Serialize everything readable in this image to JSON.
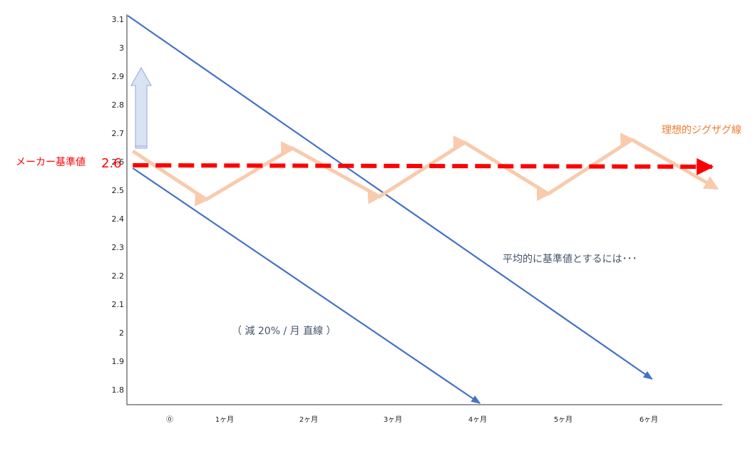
{
  "chart_data": {
    "type": "line",
    "categories": [
      "⓪",
      "1ヶ月",
      "2ヶ月",
      "3ヶ月",
      "4ヶ月",
      "5ヶ月",
      "6ヶ月"
    ],
    "xlim": [
      -0.15,
      6.9
    ],
    "ylim": [
      1.75,
      3.12
    ],
    "yticks": [
      1.8,
      1.9,
      2,
      2.1,
      2.2,
      2.3,
      2.4,
      2.5,
      2.6,
      2.7,
      2.8,
      2.9,
      3,
      3.1
    ],
    "series": [
      {
        "color": "#4472c4",
        "x": [
          -0.14,
          6.07
        ],
        "values": [
          3.115,
          1.84
        ]
      },
      {
        "color": "#4472c4",
        "x": [
          -0.08,
          4.03
        ],
        "values": [
          2.58,
          1.755
        ]
      },
      {
        "color": "#f8cbad",
        "x": [
          -0.08,
          0.79,
          1.81,
          2.84,
          3.85,
          4.84,
          5.83,
          6.83
        ],
        "values": [
          2.64,
          2.47,
          2.65,
          2.48,
          2.67,
          2.49,
          2.68,
          2.51
        ]
      },
      {
        "color": "#ff0000",
        "x": [
          -0.08,
          6.78
        ],
        "values": [
          2.59,
          2.585
        ]
      }
    ],
    "annotations": [
      {
        "text": "メーカー基準値",
        "color": "#ff0000"
      },
      {
        "text": "2.6",
        "color": "#ff0000"
      },
      {
        "text": "理想的ジグザグ線",
        "color": "#ed7d31"
      },
      {
        "text": "平均的に基準値とするには･･･",
        "color": "#44546a"
      },
      {
        "text": "（ 減 20% / 月 直線 ）",
        "color": "#44546a"
      }
    ]
  }
}
